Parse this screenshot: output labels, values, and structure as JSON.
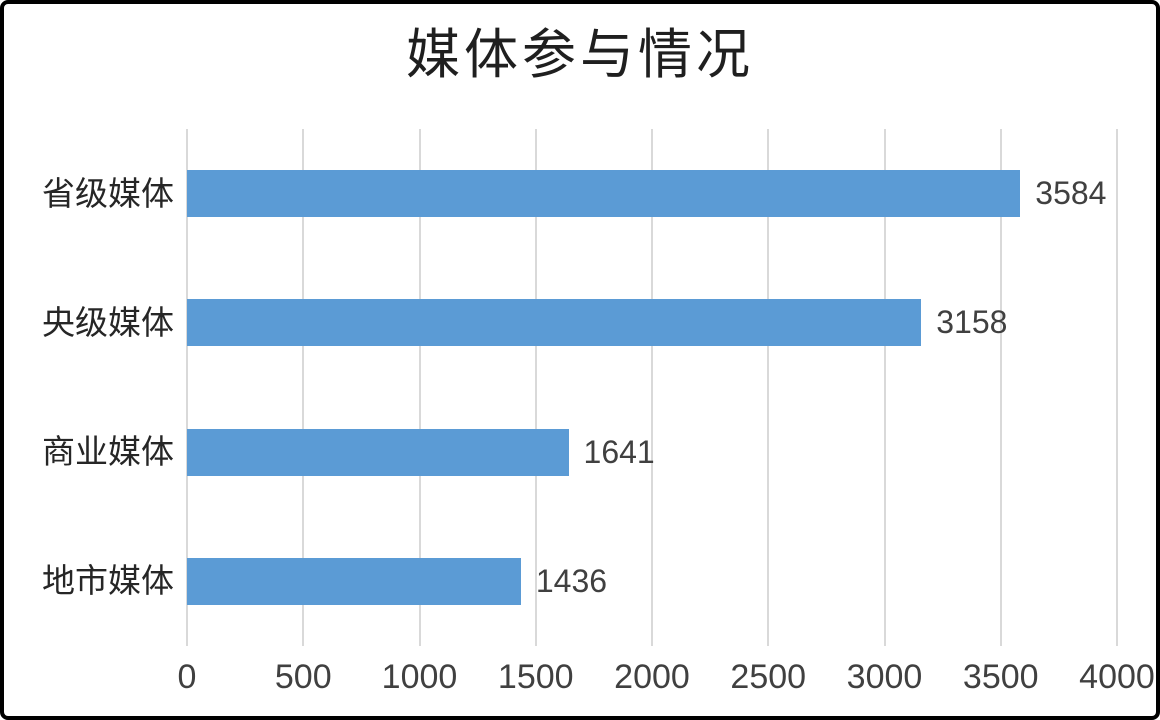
{
  "chart_data": {
    "type": "bar",
    "orientation": "horizontal",
    "title": "媒体参与情况",
    "categories": [
      "省级媒体",
      "央级媒体",
      "商业媒体",
      "地市媒体"
    ],
    "values": [
      3584,
      3158,
      1641,
      1436
    ],
    "value_labels": [
      "3584",
      "3158",
      "1641",
      "1436"
    ],
    "xticks": [
      "0",
      "500",
      "1000",
      "1500",
      "2000",
      "2500",
      "3000",
      "3500",
      "4000"
    ],
    "xlim": [
      0,
      4000
    ],
    "xlabel": "",
    "ylabel": "",
    "legend": "none",
    "grid": "vertical-gridlines-only",
    "bar_color": "#5b9bd5",
    "gridline_color": "#d9d9d9",
    "label_color": "#404040",
    "title_color": "#1f1f1f",
    "frame_border_color": "#000000",
    "background_color": "#ffffff"
  }
}
